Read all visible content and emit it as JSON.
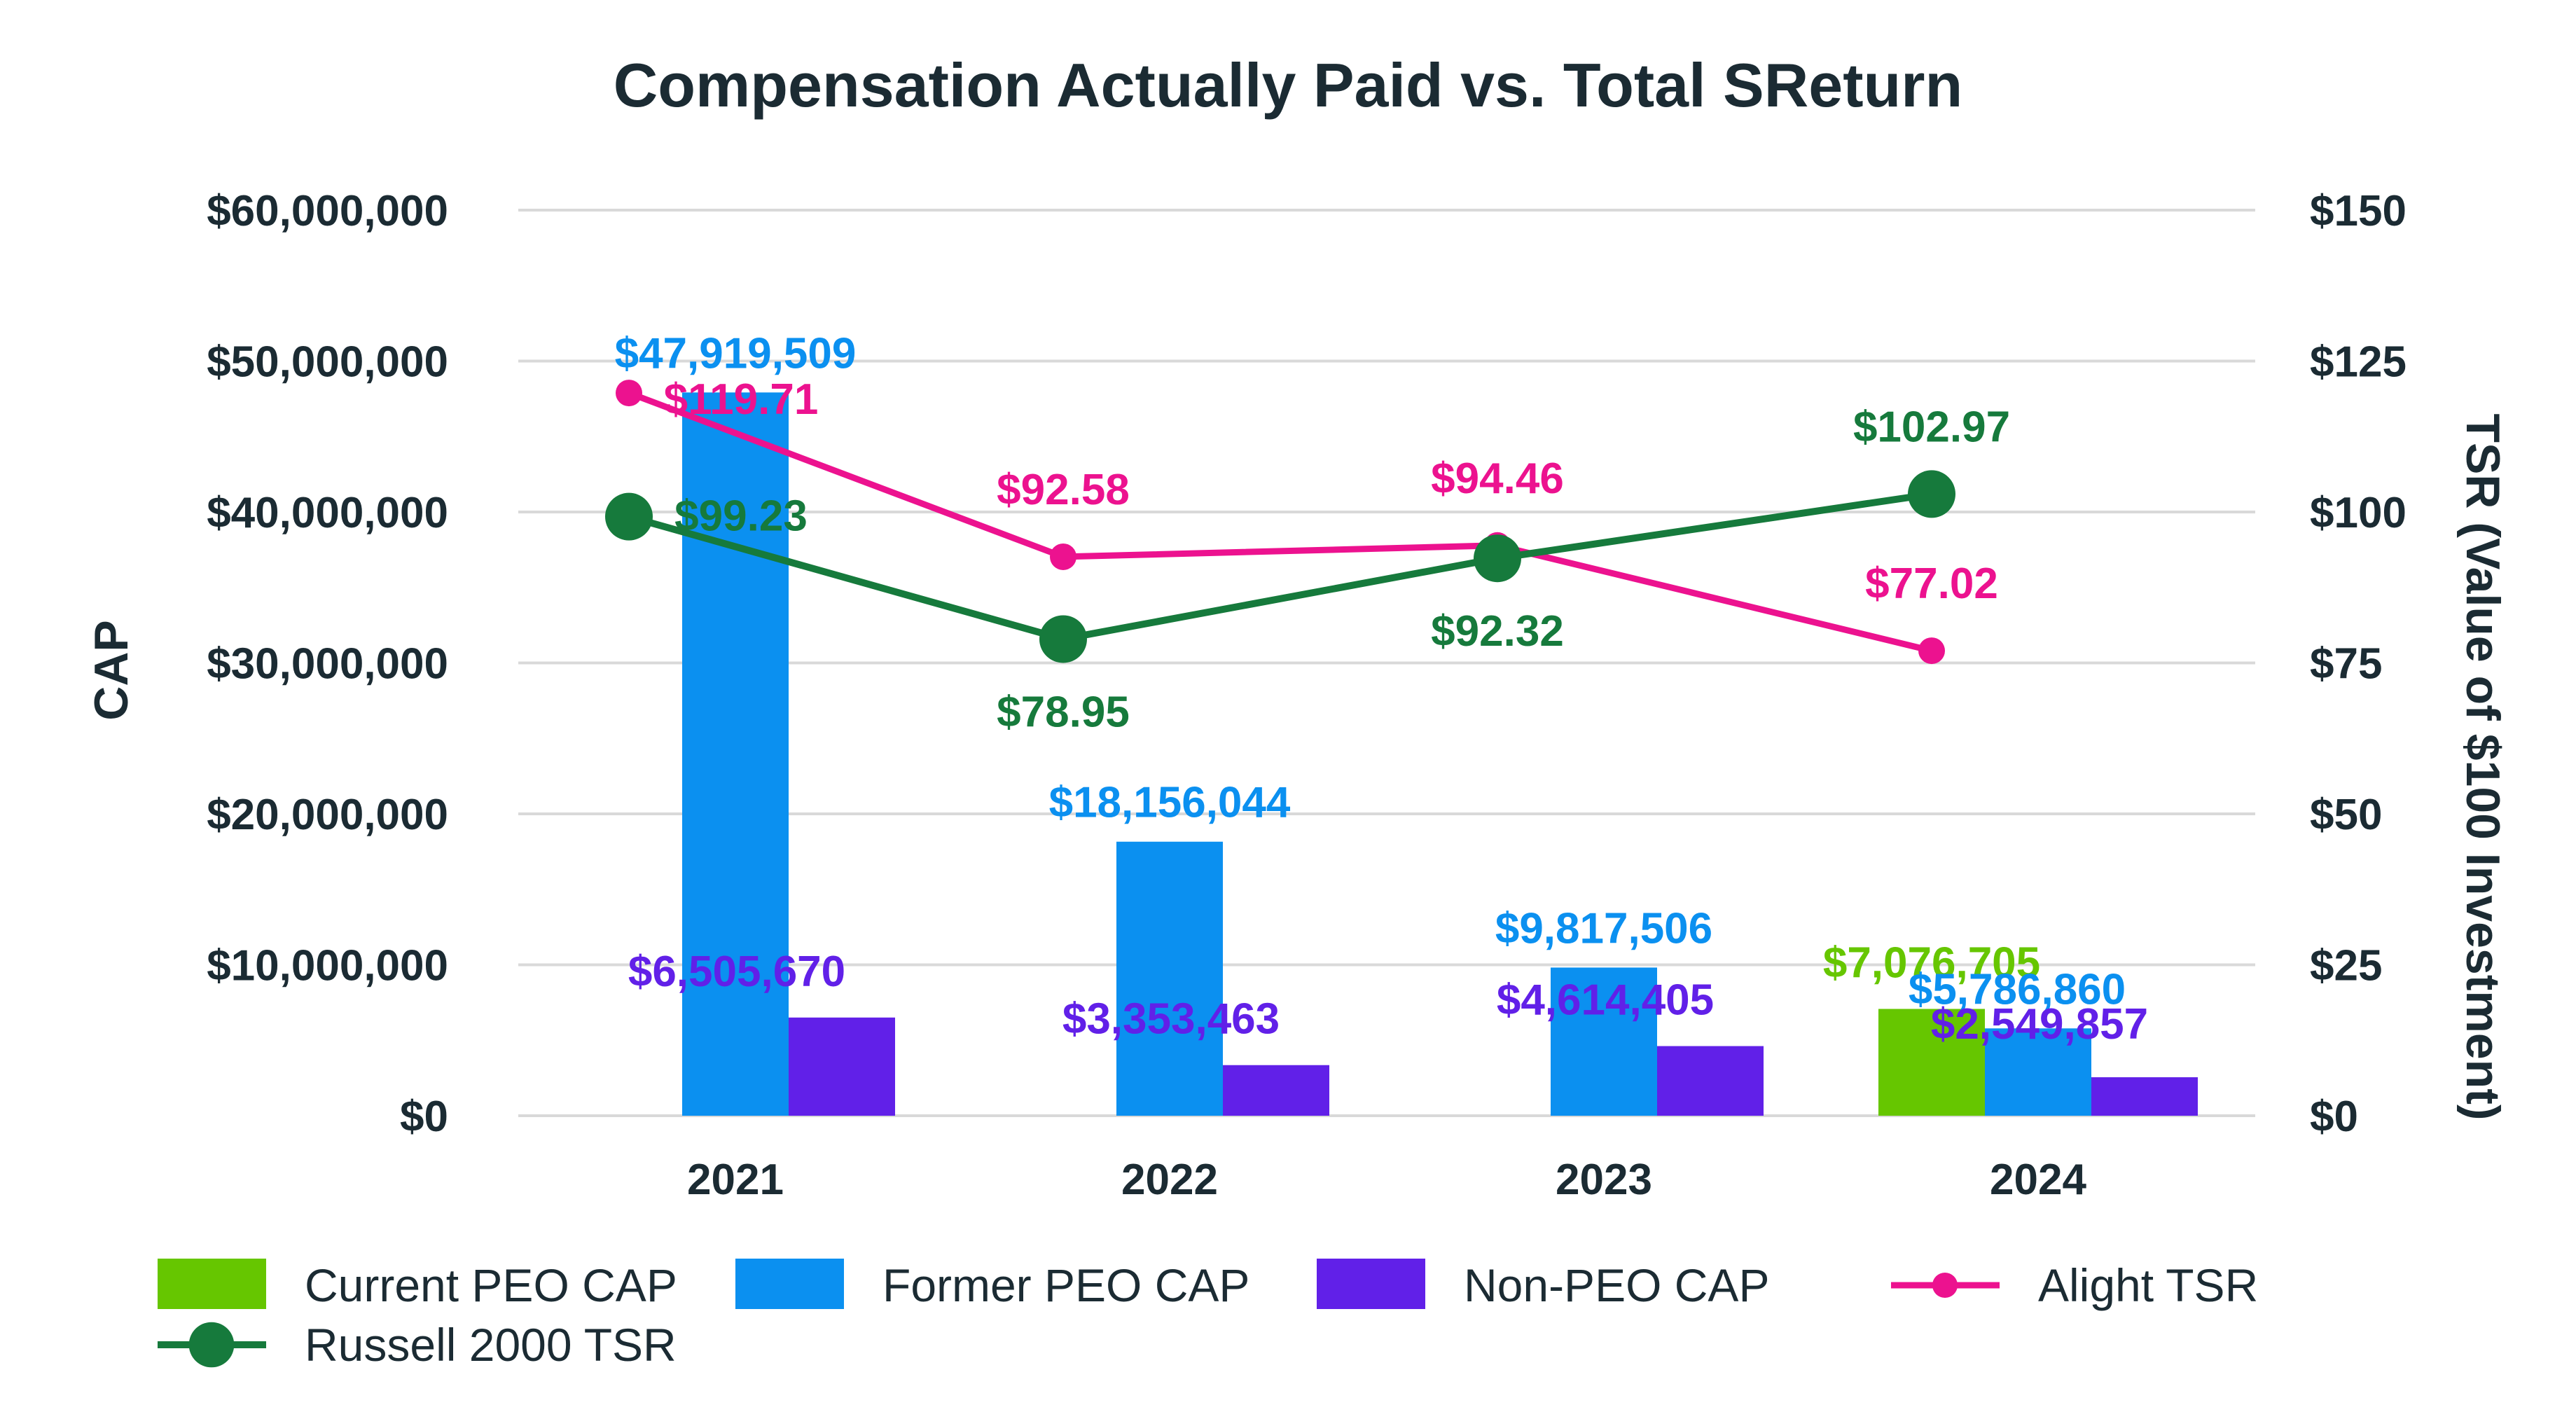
{
  "chart_data": {
    "type": "bar",
    "title": "Compensation Actually Paid vs. Total SReturn",
    "categories": [
      "2021",
      "2022",
      "2023",
      "2024"
    ],
    "y_left": {
      "label": "CAP",
      "range": [
        0,
        60000000
      ],
      "ticks": [
        "$0",
        "$10,000,000",
        "$20,000,000",
        "$30,000,000",
        "$40,000,000",
        "$50,000,000",
        "$60,000,000"
      ]
    },
    "y_right": {
      "label": "TSR (Value of $100 Investment)",
      "range": [
        0,
        150
      ],
      "ticks": [
        "$0",
        "$25",
        "$50",
        "$75",
        "$100",
        "$125",
        "$150"
      ]
    },
    "grid": true,
    "legend_position": "bottom",
    "series": [
      {
        "name": "Current PEO CAP",
        "type": "bar",
        "axis": "left",
        "color": "#66c600",
        "values": [
          null,
          null,
          null,
          7076705
        ],
        "labels": [
          "",
          "",
          "",
          "$7,076,705"
        ]
      },
      {
        "name": "Former PEO CAP",
        "type": "bar",
        "axis": "left",
        "color": "#0b90f0",
        "values": [
          47919509,
          18156044,
          9817506,
          5786860
        ],
        "labels": [
          "$47,919,509",
          "$18,156,044",
          "$9,817,506",
          "$5,786,860"
        ]
      },
      {
        "name": "Non-PEO CAP",
        "type": "bar",
        "axis": "left",
        "color": "#6120e8",
        "values": [
          6505670,
          3353463,
          4614405,
          2549857
        ],
        "labels": [
          "$6,505,670",
          "$3,353,463",
          "$4,614,405",
          "$2,549,857"
        ]
      },
      {
        "name": "Alight TSR",
        "type": "line",
        "axis": "right",
        "color": "#ec128f",
        "values": [
          119.71,
          92.58,
          94.46,
          77.02
        ],
        "labels": [
          "$119.71",
          "$92.58",
          "$94.46",
          "$77.02"
        ]
      },
      {
        "name": "Russell 2000 TSR",
        "type": "line",
        "axis": "right",
        "color": "#167a3c",
        "values": [
          99.23,
          78.95,
          92.32,
          102.97
        ],
        "labels": [
          "$99.23",
          "$78.95",
          "$92.32",
          "$102.97"
        ]
      }
    ]
  }
}
